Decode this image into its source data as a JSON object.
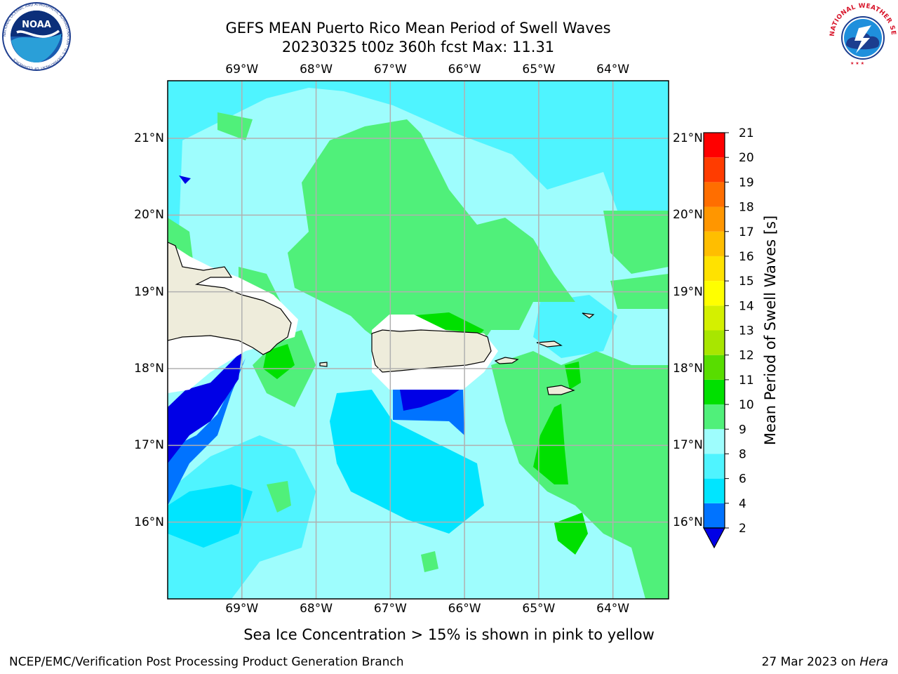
{
  "title_line1": "GEFS MEAN Puerto Rico Mean Period of Swell Waves",
  "title_line2": "20230325 t00z 360h fcst   Max: 11.31",
  "caption": "Sea Ice Concentration > 15% is shown in pink to yellow",
  "footer_left": "NCEP/EMC/Verification Post Processing Product Generation Branch",
  "footer_right_date": "27 Mar 2023 on ",
  "footer_right_host": "Hera",
  "logos": {
    "noaa": {
      "text": "NOAA",
      "ring_text": "NATIONAL OCEANIC AND ATMOSPHERIC ADMINISTRATION · U.S. DEPARTMENT OF COMMERCE"
    },
    "nws": {
      "ring_text": "NATIONAL WEATHER SERVICE"
    }
  },
  "map": {
    "lon_labels": [
      "69°W",
      "68°W",
      "67°W",
      "66°W",
      "65°W",
      "64°W"
    ],
    "lat_labels": [
      "21°N",
      "20°N",
      "19°N",
      "18°N",
      "17°N",
      "16°N"
    ],
    "lons": [
      -69,
      -68,
      -67,
      -66,
      -65,
      -64
    ],
    "lats": [
      21,
      20,
      19,
      18,
      17,
      16
    ],
    "land_color": "#eeecdb",
    "grid_color": "#b0b0b0"
  },
  "colorbar": {
    "label": "Mean Period of Swell Waves [s]",
    "ticks": [
      "2",
      "4",
      "6",
      "8",
      "9",
      "10",
      "11",
      "12",
      "13",
      "14",
      "15",
      "16",
      "17",
      "18",
      "19",
      "20",
      "21"
    ],
    "colors": [
      "#0000e6",
      "#0073ff",
      "#00e5ff",
      "#4ff4ff",
      "#9efdfd",
      "#50f07a",
      "#00e000",
      "#58dd00",
      "#a8e600",
      "#d4f000",
      "#ffff00",
      "#ffe200",
      "#ffbe00",
      "#ff9600",
      "#ff6e00",
      "#ff3c00",
      "#ff0000"
    ],
    "extend_color": "#0000e6"
  },
  "chart_data": {
    "type": "heatmap",
    "title": "GEFS MEAN Puerto Rico Mean Period of Swell Waves",
    "subtitle": "20230325 t00z 360h fcst   Max: 11.31",
    "colorbar_label": "Mean Period of Swell Waves [s]",
    "levels": [
      2,
      4,
      6,
      8,
      9,
      10,
      11,
      12,
      13,
      14,
      15,
      16,
      17,
      18,
      19,
      20,
      21
    ],
    "max": 11.31,
    "x_range": [
      -70,
      -63.25
    ],
    "y_range": [
      15,
      21.75
    ]
  }
}
